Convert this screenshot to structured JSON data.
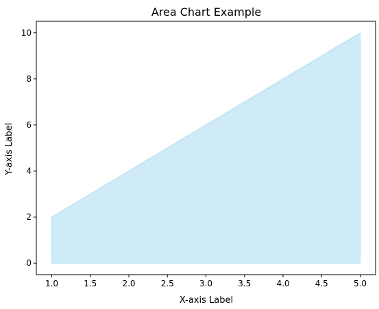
{
  "chart_data": {
    "type": "area",
    "title": "Area Chart Example",
    "xlabel": "X-axis Label",
    "ylabel": "Y-axis Label",
    "x": [
      1,
      2,
      3,
      4,
      5
    ],
    "series": [
      {
        "values": [
          2,
          4,
          6,
          8,
          10
        ],
        "color": "#87ceeb",
        "alpha": 0.4
      }
    ],
    "xlim": [
      0.8,
      5.2
    ],
    "ylim": [
      -0.5,
      10.5
    ],
    "xticks": [
      1.0,
      1.5,
      2.0,
      2.5,
      3.0,
      3.5,
      4.0,
      4.5,
      5.0
    ],
    "xtick_labels": [
      "1.0",
      "1.5",
      "2.0",
      "2.5",
      "3.0",
      "3.5",
      "4.0",
      "4.5",
      "5.0"
    ],
    "yticks": [
      0,
      2,
      4,
      6,
      8,
      10
    ],
    "ytick_labels": [
      "0",
      "2",
      "4",
      "6",
      "8",
      "10"
    ],
    "grid": false,
    "legend": false
  }
}
